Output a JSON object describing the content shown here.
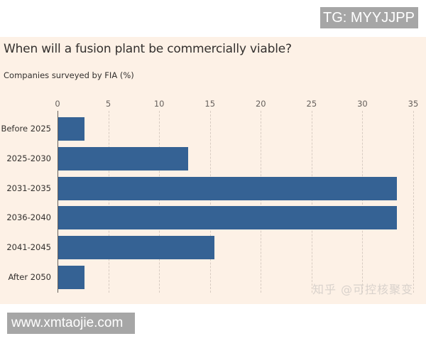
{
  "watermarks": {
    "top_right": "TG: MYYJJPP",
    "bottom_left": "www.xmtaojie.com",
    "chart_overlay": "知乎 @可控核聚变"
  },
  "colors": {
    "bar": "#356294",
    "panel_background": "#fdf1e6",
    "text": "#33302e",
    "gridline": "#d8ccc2"
  },
  "chart_data": {
    "type": "bar",
    "orientation": "horizontal",
    "title": "When will a fusion plant be commercially viable?",
    "subtitle": "Companies surveyed by FIA (%)",
    "xlabel": "",
    "ylabel": "",
    "categories": [
      "Before 2025",
      "2025-2030",
      "2031-2035",
      "2036-2040",
      "2041-2045",
      "After 2050"
    ],
    "values": [
      2.6,
      12.8,
      33.3,
      33.3,
      15.4,
      2.6
    ],
    "xlim": [
      0,
      35
    ],
    "xticks": [
      "0",
      "5",
      "10",
      "15",
      "20",
      "25",
      "30",
      "35"
    ],
    "grid": "vertical dashed",
    "legend": null
  }
}
